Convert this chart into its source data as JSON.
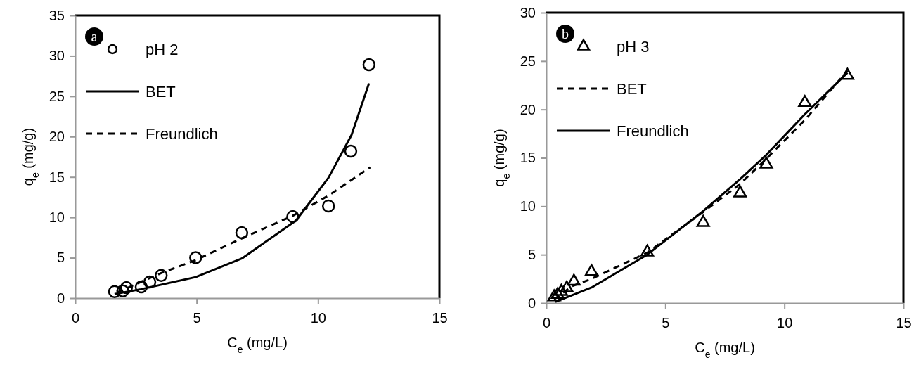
{
  "chart_data": [
    {
      "type": "scatter",
      "annotations": [
        "a"
      ],
      "xlabel": "C$_{e}$ (mg/L)",
      "ylabel": "q$_{e}$ (mg/g)",
      "xlim": [
        0,
        15
      ],
      "xticks": [
        0,
        5,
        10,
        15
      ],
      "ylim": [
        0,
        35
      ],
      "yticks": [
        0,
        5,
        10,
        15,
        20,
        25,
        30,
        35
      ],
      "grid": false,
      "legend": "top left",
      "series": [
        {
          "name": "pH 2",
          "type": "scatter",
          "marker": "circle",
          "color": "#000000",
          "x": [
            1.62,
            1.96,
            2.11,
            2.72,
            3.07,
            3.54,
            4.96,
            6.86,
            8.96,
            10.43,
            11.35,
            12.1
          ],
          "values": [
            0.8,
            0.9,
            1.3,
            1.4,
            2.0,
            2.8,
            5.0,
            8.1,
            10.1,
            11.4,
            18.2,
            28.9
          ]
        },
        {
          "name": "BET",
          "type": "line",
          "marker": "none",
          "line_style": "solid",
          "color": "#000000",
          "x": [
            1.62,
            2.7,
            4.96,
            6.86,
            9.09,
            10.43,
            11.38,
            12.1
          ],
          "values": [
            0.5,
            1.1,
            2.6,
            4.9,
            9.6,
            14.9,
            20.2,
            26.6
          ]
        },
        {
          "name": "Freundlich",
          "type": "line",
          "marker": "none",
          "line_style": "dashed",
          "color": "#000000",
          "x": [
            1.72,
            3.54,
            4.96,
            6.86,
            8.96,
            10.43,
            12.15
          ],
          "values": [
            0.7,
            3.1,
            4.7,
            7.4,
            10.2,
            12.7,
            16.2
          ]
        }
      ]
    },
    {
      "type": "scatter",
      "annotations": [
        "b"
      ],
      "xlabel": "C$_{e}$ (mg/L)",
      "ylabel": "q$_{e}$ (mg/g)",
      "xlim": [
        0,
        15
      ],
      "xticks": [
        0,
        5,
        10,
        15
      ],
      "ylim": [
        0,
        30
      ],
      "yticks": [
        0,
        5,
        10,
        15,
        20,
        25,
        30
      ],
      "grid": false,
      "legend": "top left",
      "series": [
        {
          "name": "pH 3",
          "type": "scatter",
          "marker": "triangle",
          "color": "#000000",
          "x": [
            0.33,
            0.48,
            0.63,
            0.86,
            1.16,
            1.9,
            4.24,
            6.59,
            8.14,
            9.24,
            10.86,
            12.65
          ],
          "values": [
            0.62,
            0.87,
            1.19,
            1.54,
            2.23,
            3.23,
            5.26,
            8.31,
            11.36,
            14.34,
            20.7,
            23.5
          ]
        },
        {
          "name": "BET",
          "type": "line",
          "marker": "none",
          "line_style": "dashed",
          "color": "#000000",
          "x": [
            0.33,
            1.08,
            1.88,
            4.24,
            6.59,
            8.14,
            9.24,
            10.86,
            12.65
          ],
          "values": [
            0.37,
            1.74,
            2.48,
            5.2,
            9.4,
            12.3,
            14.9,
            18.9,
            24.0
          ]
        },
        {
          "name": "Freundlich",
          "type": "line",
          "marker": "none",
          "line_style": "solid",
          "color": "#000000",
          "x": [
            0.38,
            1.9,
            4.24,
            6.59,
            8.14,
            9.24,
            10.86,
            12.65
          ],
          "values": [
            0.12,
            1.6,
            5.0,
            9.5,
            12.8,
            15.3,
            19.5,
            23.8
          ]
        }
      ]
    }
  ]
}
